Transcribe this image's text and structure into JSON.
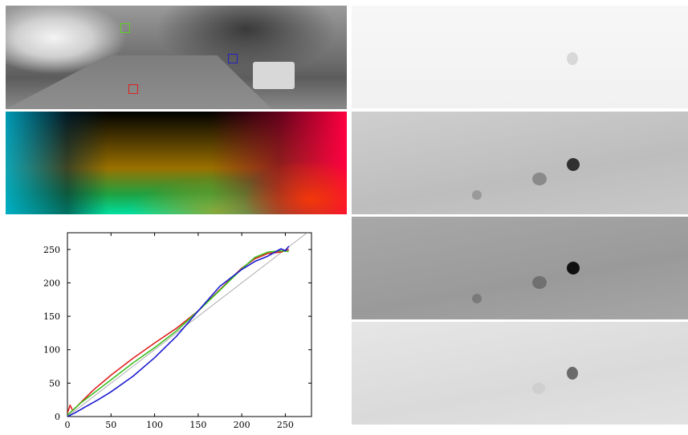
{
  "chart_data": {
    "type": "line",
    "title": "",
    "xlabel": "",
    "ylabel": "",
    "xlim": [
      0,
      280
    ],
    "ylim": [
      0,
      275
    ],
    "x_ticks": [
      0,
      50,
      100,
      150,
      200,
      250
    ],
    "y_ticks": [
      0,
      50,
      100,
      150,
      200,
      250
    ],
    "series": [
      {
        "color": "#e02020",
        "points": [
          [
            0,
            5
          ],
          [
            3,
            17
          ],
          [
            6,
            9
          ],
          [
            10,
            14
          ],
          [
            20,
            27
          ],
          [
            30,
            40
          ],
          [
            50,
            62
          ],
          [
            75,
            87
          ],
          [
            100,
            110
          ],
          [
            125,
            132
          ],
          [
            150,
            158
          ],
          [
            175,
            190
          ],
          [
            200,
            222
          ],
          [
            215,
            236
          ],
          [
            230,
            244
          ],
          [
            245,
            246
          ],
          [
            254,
            250
          ]
        ]
      },
      {
        "color": "#3cbf20",
        "points": [
          [
            0,
            2
          ],
          [
            5,
            8
          ],
          [
            15,
            20
          ],
          [
            30,
            35
          ],
          [
            50,
            55
          ],
          [
            75,
            80
          ],
          [
            100,
            103
          ],
          [
            125,
            128
          ],
          [
            150,
            158
          ],
          [
            175,
            189
          ],
          [
            200,
            221
          ],
          [
            215,
            238
          ],
          [
            230,
            246
          ],
          [
            245,
            248
          ],
          [
            254,
            247
          ]
        ]
      },
      {
        "color": "#1a1ad0",
        "points": [
          [
            0,
            0
          ],
          [
            8,
            5
          ],
          [
            20,
            14
          ],
          [
            35,
            25
          ],
          [
            50,
            37
          ],
          [
            75,
            60
          ],
          [
            100,
            88
          ],
          [
            125,
            120
          ],
          [
            150,
            158
          ],
          [
            175,
            195
          ],
          [
            200,
            220
          ],
          [
            215,
            232
          ],
          [
            230,
            240
          ],
          [
            245,
            251
          ],
          [
            250,
            248
          ],
          [
            254,
            255
          ]
        ]
      },
      {
        "color": "#999999",
        "points": [
          [
            0,
            0
          ],
          [
            280,
            280
          ]
        ]
      }
    ]
  },
  "colors": {
    "marker_red": "#e02020",
    "marker_green": "#5ccf20",
    "marker_blue": "#2020c0"
  }
}
